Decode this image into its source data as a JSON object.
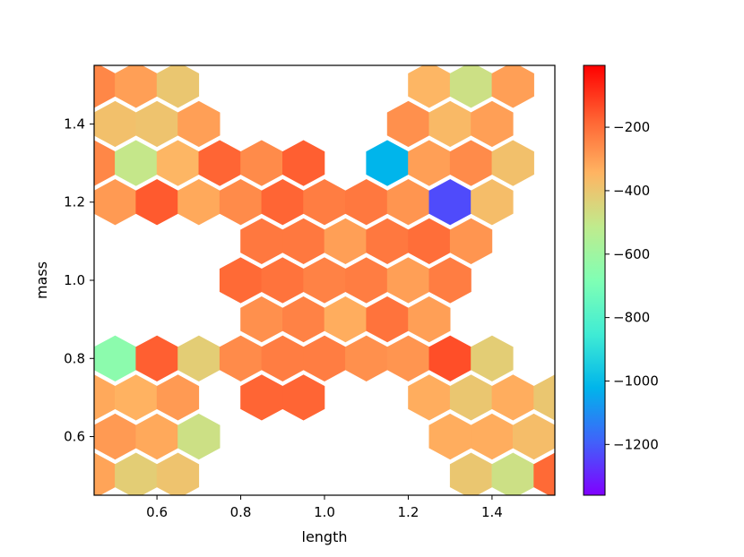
{
  "chart_data": {
    "type": "hexbin",
    "xlabel": "length",
    "ylabel": "mass",
    "xlim": [
      0.45,
      1.55
    ],
    "ylim": [
      0.45,
      1.55
    ],
    "x_ticks": [
      "0.6",
      "0.8",
      "1.0",
      "1.2",
      "1.4"
    ],
    "x_tick_values": [
      0.6,
      0.8,
      1.0,
      1.2,
      1.4
    ],
    "y_ticks": [
      "0.6",
      "0.8",
      "1.0",
      "1.2",
      "1.4"
    ],
    "y_tick_values": [
      0.6,
      0.8,
      1.0,
      1.2,
      1.4
    ],
    "colorbar": {
      "colormap": "rainbow",
      "range": [
        -1360,
        -5
      ],
      "ticks": [
        "−200",
        "−400",
        "−600",
        "−800",
        "−1000",
        "−1200"
      ],
      "tick_values": [
        -200,
        -400,
        -600,
        -800,
        -1000,
        -1200
      ]
    },
    "hex_radius": 0.058,
    "cells": [
      {
        "x": 0.45,
        "y": 1.5,
        "value": -250
      },
      {
        "x": 0.55,
        "y": 1.5,
        "value": -300
      },
      {
        "x": 0.65,
        "y": 1.5,
        "value": -400
      },
      {
        "x": 1.25,
        "y": 1.5,
        "value": -350
      },
      {
        "x": 1.35,
        "y": 1.5,
        "value": -480
      },
      {
        "x": 1.45,
        "y": 1.5,
        "value": -300
      },
      {
        "x": 0.5,
        "y": 1.4,
        "value": -380
      },
      {
        "x": 0.6,
        "y": 1.4,
        "value": -390
      },
      {
        "x": 0.7,
        "y": 1.4,
        "value": -300
      },
      {
        "x": 1.2,
        "y": 1.4,
        "value": -270
      },
      {
        "x": 1.3,
        "y": 1.4,
        "value": -360
      },
      {
        "x": 1.4,
        "y": 1.4,
        "value": -300
      },
      {
        "x": 0.45,
        "y": 1.3,
        "value": -250
      },
      {
        "x": 0.55,
        "y": 1.3,
        "value": -500
      },
      {
        "x": 0.65,
        "y": 1.3,
        "value": -350
      },
      {
        "x": 0.75,
        "y": 1.3,
        "value": -180
      },
      {
        "x": 0.85,
        "y": 1.3,
        "value": -260
      },
      {
        "x": 0.95,
        "y": 1.3,
        "value": -170
      },
      {
        "x": 1.15,
        "y": 1.3,
        "value": -1020
      },
      {
        "x": 1.25,
        "y": 1.3,
        "value": -300
      },
      {
        "x": 1.35,
        "y": 1.3,
        "value": -260
      },
      {
        "x": 1.45,
        "y": 1.3,
        "value": -380
      },
      {
        "x": 0.5,
        "y": 1.2,
        "value": -290
      },
      {
        "x": 0.6,
        "y": 1.2,
        "value": -160
      },
      {
        "x": 0.7,
        "y": 1.2,
        "value": -320
      },
      {
        "x": 0.8,
        "y": 1.2,
        "value": -260
      },
      {
        "x": 0.9,
        "y": 1.2,
        "value": -180
      },
      {
        "x": 1.0,
        "y": 1.2,
        "value": -230
      },
      {
        "x": 1.1,
        "y": 1.2,
        "value": -220
      },
      {
        "x": 1.2,
        "y": 1.2,
        "value": -280
      },
      {
        "x": 1.3,
        "y": 1.2,
        "value": -1230
      },
      {
        "x": 1.4,
        "y": 1.2,
        "value": -370
      },
      {
        "x": 0.85,
        "y": 1.1,
        "value": -220
      },
      {
        "x": 0.95,
        "y": 1.1,
        "value": -220
      },
      {
        "x": 1.05,
        "y": 1.1,
        "value": -300
      },
      {
        "x": 1.15,
        "y": 1.1,
        "value": -220
      },
      {
        "x": 1.25,
        "y": 1.1,
        "value": -200
      },
      {
        "x": 1.35,
        "y": 1.1,
        "value": -280
      },
      {
        "x": 0.8,
        "y": 1.0,
        "value": -190
      },
      {
        "x": 0.9,
        "y": 1.0,
        "value": -210
      },
      {
        "x": 1.0,
        "y": 1.0,
        "value": -240
      },
      {
        "x": 1.1,
        "y": 1.0,
        "value": -230
      },
      {
        "x": 1.2,
        "y": 1.0,
        "value": -300
      },
      {
        "x": 1.3,
        "y": 1.0,
        "value": -230
      },
      {
        "x": 0.85,
        "y": 0.9,
        "value": -270
      },
      {
        "x": 0.95,
        "y": 0.9,
        "value": -240
      },
      {
        "x": 1.05,
        "y": 0.9,
        "value": -330
      },
      {
        "x": 1.15,
        "y": 0.9,
        "value": -210
      },
      {
        "x": 1.25,
        "y": 0.9,
        "value": -300
      },
      {
        "x": 0.5,
        "y": 0.8,
        "value": -650
      },
      {
        "x": 0.6,
        "y": 0.8,
        "value": -170
      },
      {
        "x": 0.7,
        "y": 0.8,
        "value": -420
      },
      {
        "x": 0.8,
        "y": 0.8,
        "value": -260
      },
      {
        "x": 0.9,
        "y": 0.8,
        "value": -230
      },
      {
        "x": 1.0,
        "y": 0.8,
        "value": -230
      },
      {
        "x": 1.1,
        "y": 0.8,
        "value": -270
      },
      {
        "x": 1.2,
        "y": 0.8,
        "value": -280
      },
      {
        "x": 1.3,
        "y": 0.8,
        "value": -140
      },
      {
        "x": 1.4,
        "y": 0.8,
        "value": -420
      },
      {
        "x": 0.45,
        "y": 0.7,
        "value": -320
      },
      {
        "x": 0.55,
        "y": 0.7,
        "value": -340
      },
      {
        "x": 0.65,
        "y": 0.7,
        "value": -290
      },
      {
        "x": 0.85,
        "y": 0.7,
        "value": -180
      },
      {
        "x": 0.95,
        "y": 0.7,
        "value": -180
      },
      {
        "x": 1.25,
        "y": 0.7,
        "value": -330
      },
      {
        "x": 1.35,
        "y": 0.7,
        "value": -400
      },
      {
        "x": 1.45,
        "y": 0.7,
        "value": -330
      },
      {
        "x": 1.55,
        "y": 0.7,
        "value": -400
      },
      {
        "x": 0.5,
        "y": 0.6,
        "value": -290
      },
      {
        "x": 0.6,
        "y": 0.6,
        "value": -320
      },
      {
        "x": 0.7,
        "y": 0.6,
        "value": -480
      },
      {
        "x": 1.3,
        "y": 0.6,
        "value": -330
      },
      {
        "x": 1.4,
        "y": 0.6,
        "value": -330
      },
      {
        "x": 1.5,
        "y": 0.6,
        "value": -370
      },
      {
        "x": 0.45,
        "y": 0.5,
        "value": -310
      },
      {
        "x": 0.55,
        "y": 0.5,
        "value": -420
      },
      {
        "x": 0.65,
        "y": 0.5,
        "value": -390
      },
      {
        "x": 1.35,
        "y": 0.5,
        "value": -400
      },
      {
        "x": 1.45,
        "y": 0.5,
        "value": -480
      },
      {
        "x": 1.55,
        "y": 0.5,
        "value": -190
      }
    ]
  }
}
